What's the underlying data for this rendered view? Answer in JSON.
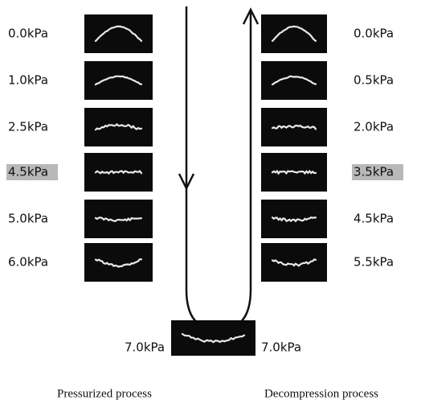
{
  "left": {
    "items": [
      {
        "label": "0.0kPa"
      },
      {
        "label": "1.0kPa"
      },
      {
        "label": "2.5kPa"
      },
      {
        "label": "4.5kPa"
      },
      {
        "label": "5.0kPa"
      },
      {
        "label": "6.0kPa"
      }
    ]
  },
  "right": {
    "items": [
      {
        "label": "0.0kPa"
      },
      {
        "label": "0.5kPa"
      },
      {
        "label": "2.0kPa"
      },
      {
        "label": "3.5kPa"
      },
      {
        "label": "4.5kPa"
      },
      {
        "label": "5.5kPa"
      }
    ]
  },
  "bottom": {
    "left_label": "7.0kPa",
    "right_label": "7.0kPa"
  },
  "captions": {
    "left": "Pressurized process",
    "right": "Decompression process"
  }
}
